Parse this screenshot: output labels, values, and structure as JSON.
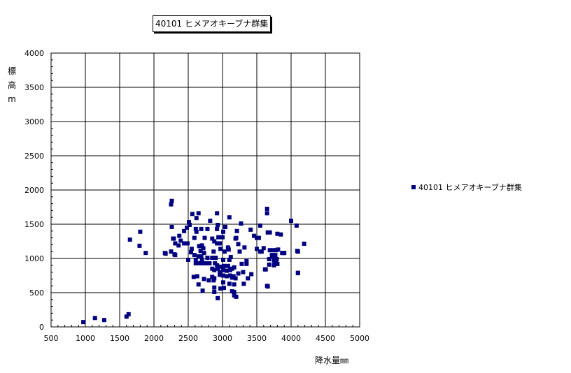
{
  "colors": {
    "series": "#000080",
    "grid": "#000000"
  },
  "chart_data": {
    "type": "scatter",
    "title": "40101 ヒメアオキーブナ群集",
    "xlabel": "降水量㎜",
    "ylabel": [
      "標",
      "高",
      "m"
    ],
    "xlim": [
      500,
      5000
    ],
    "ylim": [
      0,
      4000
    ],
    "xticks": [
      "500",
      "1000",
      "1500",
      "2000",
      "2500",
      "3000",
      "3500",
      "4000",
      "4500",
      "5000"
    ],
    "yticks": [
      "0",
      "500",
      "1000",
      "1500",
      "2000",
      "2500",
      "3000",
      "3500",
      "4000"
    ],
    "grid": true,
    "legend_position": "right",
    "series": [
      {
        "name": "40101 ヒメアオキーブナ群集",
        "marker": "square",
        "points": [
          [
            970,
            70
          ],
          [
            1140,
            130
          ],
          [
            1275,
            100
          ],
          [
            1600,
            150
          ],
          [
            1630,
            185
          ],
          [
            1650,
            1275
          ],
          [
            1800,
            1390
          ],
          [
            1790,
            1185
          ],
          [
            1880,
            1080
          ],
          [
            2160,
            1080
          ],
          [
            2260,
            1840
          ],
          [
            2250,
            1790
          ],
          [
            2260,
            1460
          ],
          [
            2250,
            1100
          ],
          [
            2300,
            1060
          ],
          [
            2280,
            1290
          ],
          [
            3650,
            1725
          ],
          [
            3650,
            1660
          ],
          [
            3550,
            1480
          ],
          [
            3660,
            1380
          ],
          [
            4000,
            1550
          ],
          [
            4080,
            1480
          ],
          [
            4190,
            1215
          ],
          [
            4100,
            1100
          ],
          [
            4100,
            785
          ],
          [
            3650,
            600
          ],
          [
            3620,
            840
          ],
          [
            3870,
            1080
          ],
          [
            3800,
            1360
          ],
          [
            3500,
            1140
          ],
          [
            3530,
            1300
          ],
          [
            3570,
            1100
          ],
          [
            3740,
            1120
          ],
          [
            3810,
            1130
          ],
          [
            3730,
            1030
          ],
          [
            3790,
            990
          ],
          [
            3750,
            970
          ],
          [
            3800,
            920
          ],
          [
            3680,
            910
          ],
          [
            3890,
            1080
          ],
          [
            2560,
            1650
          ],
          [
            2650,
            1660
          ],
          [
            2920,
            1660
          ],
          [
            3100,
            1600
          ],
          [
            2620,
            1590
          ],
          [
            2820,
            1550
          ],
          [
            2510,
            1530
          ],
          [
            3270,
            1510
          ],
          [
            2930,
            1490
          ],
          [
            2520,
            1490
          ],
          [
            3040,
            1460
          ],
          [
            2480,
            1450
          ],
          [
            2610,
            1430
          ],
          [
            2690,
            1430
          ],
          [
            2780,
            1430
          ],
          [
            2440,
            1400
          ],
          [
            2620,
            1390
          ],
          [
            2920,
            1430
          ],
          [
            3010,
            1390
          ],
          [
            3040,
            1460
          ],
          [
            3210,
            1400
          ],
          [
            3410,
            1420
          ],
          [
            3690,
            1380
          ],
          [
            3850,
            1350
          ],
          [
            2370,
            1330
          ],
          [
            2290,
            1290
          ],
          [
            2590,
            1300
          ],
          [
            2740,
            1300
          ],
          [
            2850,
            1290
          ],
          [
            2880,
            1250
          ],
          [
            2940,
            1310
          ],
          [
            2920,
            1220
          ],
          [
            2960,
            1220
          ],
          [
            3000,
            1310
          ],
          [
            3190,
            1290
          ],
          [
            3200,
            1300
          ],
          [
            3460,
            1330
          ],
          [
            3500,
            1300
          ],
          [
            2390,
            1260
          ],
          [
            2310,
            1220
          ],
          [
            2360,
            1190
          ],
          [
            2440,
            1220
          ],
          [
            2490,
            1220
          ],
          [
            3230,
            1210
          ],
          [
            2550,
            1140
          ],
          [
            2660,
            1180
          ],
          [
            2700,
            1190
          ],
          [
            2720,
            1150
          ],
          [
            2680,
            1110
          ],
          [
            2970,
            1140
          ],
          [
            3080,
            1160
          ],
          [
            3090,
            1130
          ],
          [
            3320,
            1160
          ],
          [
            3600,
            1150
          ],
          [
            3690,
            1120
          ],
          [
            3780,
            1120
          ],
          [
            3550,
            1100
          ],
          [
            2250,
            1100
          ],
          [
            2170,
            1070
          ],
          [
            2310,
            1050
          ],
          [
            2540,
            1090
          ],
          [
            2730,
            1080
          ],
          [
            2870,
            1100
          ],
          [
            3030,
            1100
          ],
          [
            3250,
            1100
          ],
          [
            3900,
            1080
          ],
          [
            4090,
            1110
          ],
          [
            3720,
            1050
          ],
          [
            3770,
            1050
          ],
          [
            2590,
            1050
          ],
          [
            2650,
            1030
          ],
          [
            2690,
            1030
          ],
          [
            2780,
            1010
          ],
          [
            2850,
            1010
          ],
          [
            2900,
            1010
          ],
          [
            3120,
            1020
          ],
          [
            3010,
            980
          ],
          [
            3100,
            980
          ],
          [
            2500,
            980
          ],
          [
            2610,
            980
          ],
          [
            2700,
            980
          ],
          [
            3680,
            990
          ],
          [
            3760,
            960
          ],
          [
            3780,
            960
          ],
          [
            3750,
            900
          ],
          [
            2610,
            930
          ],
          [
            2660,
            930
          ],
          [
            2710,
            930
          ],
          [
            2760,
            930
          ],
          [
            2810,
            930
          ],
          [
            2890,
            930
          ],
          [
            2920,
            900
          ],
          [
            2980,
            880
          ],
          [
            3020,
            890
          ],
          [
            3080,
            890
          ],
          [
            3280,
            920
          ],
          [
            3350,
            960
          ],
          [
            3350,
            920
          ],
          [
            2850,
            850
          ],
          [
            2880,
            830
          ],
          [
            2930,
            850
          ],
          [
            2960,
            800
          ],
          [
            3010,
            830
          ],
          [
            3060,
            820
          ],
          [
            3110,
            830
          ],
          [
            3140,
            850
          ],
          [
            3170,
            870
          ],
          [
            3630,
            840
          ],
          [
            4100,
            790
          ],
          [
            3300,
            800
          ],
          [
            3420,
            770
          ],
          [
            3370,
            710
          ],
          [
            2850,
            730
          ],
          [
            2880,
            710
          ],
          [
            2960,
            760
          ],
          [
            3010,
            750
          ],
          [
            3060,
            740
          ],
          [
            3110,
            750
          ],
          [
            3160,
            740
          ],
          [
            3190,
            710
          ],
          [
            2580,
            730
          ],
          [
            2630,
            740
          ],
          [
            2730,
            700
          ],
          [
            2800,
            680
          ],
          [
            2870,
            680
          ],
          [
            3010,
            650
          ],
          [
            3100,
            630
          ],
          [
            3140,
            720
          ],
          [
            3230,
            780
          ],
          [
            3310,
            630
          ],
          [
            2650,
            620
          ],
          [
            2710,
            530
          ],
          [
            2880,
            575
          ],
          [
            2880,
            510
          ],
          [
            2970,
            560
          ],
          [
            3020,
            570
          ],
          [
            3170,
            620
          ],
          [
            3170,
            510
          ],
          [
            3140,
            520
          ],
          [
            3170,
            460
          ],
          [
            2930,
            420
          ],
          [
            3660,
            590
          ],
          [
            3200,
            440
          ]
        ]
      }
    ]
  }
}
